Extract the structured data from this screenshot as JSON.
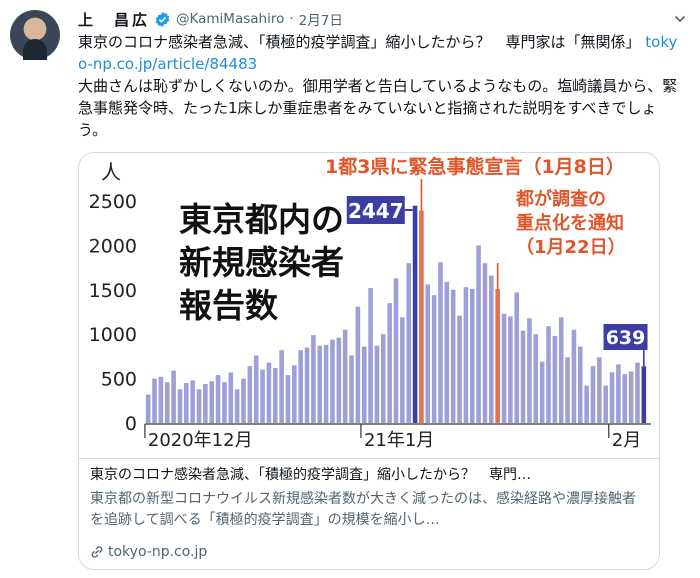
{
  "tweet": {
    "author_name": "上　昌広",
    "handle": "@KamiMasahiro",
    "separator": "·",
    "date": "2月7日",
    "text_line1": "東京のコロナ感染者急減、「積極的疫学調査」縮小したから？　専門家は「無関係」",
    "link": "tokyo-np.co.jp/article/84483",
    "text_line2": "大曲さんは恥ずかしくないのか。御用学者と告白しているようなもの。塩崎議員から、緊急事態発令時、たった1床しか重症患者をみていないと指摘された説明をすべきでしょう。"
  },
  "card": {
    "title": "東京のコロナ感染者急減、「積極的疫学調査」縮小したから？　専門…",
    "description": "東京都の新型コロナウイルス新規感染者数が大きく減ったのは、感染経路や濃厚接触者を追跡して調べる「積極的疫学調査」の規模を縮小し…",
    "domain": "tokyo-np.co.jp"
  },
  "colors": {
    "bar": "#9f9fd8",
    "highlight": "#e5704c",
    "dark_bar": "#3c3ea6",
    "accent_text": "#e0562b",
    "link": "#1b8fd9",
    "verified": "#1d9bf0"
  },
  "chart_data": {
    "type": "bar",
    "title": "東京都内の\n新規感染者\n報告数",
    "ylabel": "人",
    "ylim": [
      0,
      2500
    ],
    "yticks": [
      0,
      500,
      1000,
      1500,
      2000,
      2500
    ],
    "x_labels": [
      "2020年12月",
      "21年1月",
      "2月"
    ],
    "values": [
      320,
      500,
      520,
      460,
      590,
      380,
      450,
      480,
      380,
      440,
      470,
      540,
      460,
      570,
      380,
      500,
      640,
      760,
      600,
      680,
      620,
      820,
      540,
      650,
      820,
      850,
      990,
      870,
      880,
      940,
      960,
      1050,
      760,
      1310,
      860,
      1520,
      870,
      1000,
      1350,
      1630,
      1190,
      1800,
      2447,
      2392,
      1560,
      1440,
      1810,
      1590,
      1500,
      1210,
      1530,
      1510,
      2000,
      1800,
      1660,
      1510,
      1230,
      1200,
      1470,
      1040,
      1180,
      1000,
      690,
      1090,
      980,
      1190,
      740,
      1050,
      860,
      420,
      640,
      740,
      420,
      570,
      660,
      550,
      580,
      680,
      639
    ],
    "highlight_indices": [
      43,
      55
    ],
    "dark_indices": [
      42,
      78
    ],
    "annotations": {
      "peak_value": "2447",
      "last_value": "639",
      "emergency": "1都3県に緊急事態宣言（1月8日）",
      "policy": "都が調査の\n重点化を通知\n（1月22日）"
    }
  }
}
